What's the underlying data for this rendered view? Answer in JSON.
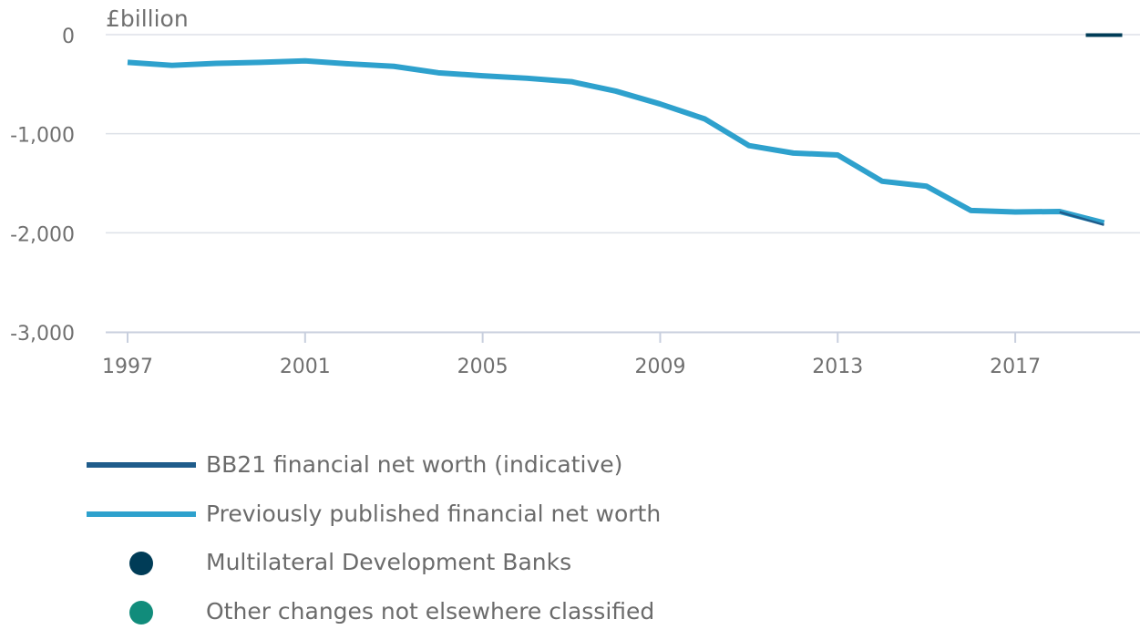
{
  "chart_data": {
    "type": "line",
    "ylabel": "£billion",
    "xlabel": "",
    "ylim": [
      -3000,
      0
    ],
    "yticks": [
      {
        "value": 0,
        "label": "0"
      },
      {
        "value": -1000,
        "label": "-1,000"
      },
      {
        "value": -2000,
        "label": "-2,000"
      },
      {
        "value": -3000,
        "label": "-3,000"
      }
    ],
    "xlim": [
      1997,
      2019.4
    ],
    "xticks": [
      {
        "value": 1997,
        "label": "1997"
      },
      {
        "value": 2001,
        "label": "2001"
      },
      {
        "value": 2005,
        "label": "2005"
      },
      {
        "value": 2009,
        "label": "2009"
      },
      {
        "value": 2013,
        "label": "2013"
      },
      {
        "value": 2017,
        "label": "2017"
      }
    ],
    "grid": true,
    "legend_position": "bottom",
    "series": [
      {
        "name": "BB21 financial net worth (indicative)",
        "color": "#1f5c8b",
        "x": [
          2018,
          2019
        ],
        "y": [
          -1790,
          -1920
        ]
      },
      {
        "name": "Previously published financial net worth",
        "color": "#2ea1cd",
        "x": [
          1997,
          1998,
          1999,
          2000,
          2001,
          2002,
          2003,
          2004,
          2005,
          2006,
          2007,
          2008,
          2009,
          2010,
          2011,
          2012,
          2013,
          2014,
          2015,
          2016,
          2017,
          2018,
          2019
        ],
        "y": [
          -280,
          -310,
          -290,
          -280,
          -265,
          -295,
          -320,
          -385,
          -415,
          -440,
          -475,
          -570,
          -700,
          -850,
          -1120,
          -1195,
          -1215,
          -1480,
          -1530,
          -1775,
          -1790,
          -1785,
          -1900
        ]
      },
      {
        "name": "Multilateral Development Banks",
        "color": "#003c57",
        "x": [
          2019
        ],
        "y": [
          -5
        ]
      },
      {
        "name": "Other changes not elsewhere classified",
        "color": "#118c7b",
        "x": [],
        "y": []
      }
    ]
  },
  "legend": [
    {
      "label": "BB21 financial net worth (indicative)",
      "color": "#1f5c8b",
      "marker": "line"
    },
    {
      "label": "Previously published financial net worth",
      "color": "#2ea1cd",
      "marker": "line"
    },
    {
      "label": "Multilateral Development Banks",
      "color": "#003c57",
      "marker": "dot"
    },
    {
      "label": "Other changes not elsewhere classified",
      "color": "#118c7b",
      "marker": "dot"
    }
  ]
}
